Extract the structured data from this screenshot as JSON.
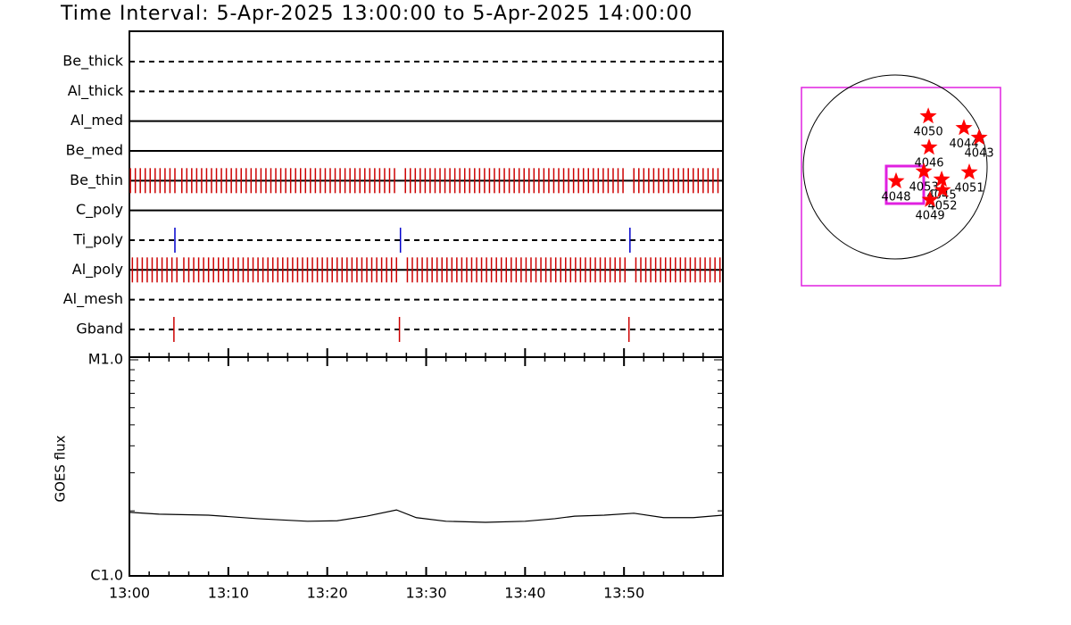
{
  "chart_data": [
    {
      "type": "timeline",
      "title": "Time Interval:  5-Apr-2025 13:00:00 to  5-Apr-2025 14:00:00",
      "xlim": [
        0,
        60
      ],
      "rows": [
        {
          "name": "Be_thick",
          "style": "dashed",
          "color": "#cc0000",
          "events": []
        },
        {
          "name": "Al_thick",
          "style": "dashed",
          "color": "#cc0000",
          "events": []
        },
        {
          "name": "Al_med",
          "style": "solid",
          "color": "#cc0000",
          "events": []
        },
        {
          "name": "Be_med",
          "style": "solid",
          "color": "#cc0000",
          "events": []
        },
        {
          "name": "Be_thin",
          "style": "solid",
          "color": "#cc0000",
          "events": [
            0.1,
            0.6,
            1.1,
            1.6,
            2.1,
            2.6,
            3.1,
            3.6,
            4.1,
            4.6,
            5.3,
            5.8,
            6.3,
            6.8,
            7.3,
            7.8,
            8.3,
            8.8,
            9.3,
            9.8,
            10.3,
            10.8,
            11.3,
            11.8,
            12.3,
            12.8,
            13.3,
            13.8,
            14.3,
            14.8,
            15.3,
            15.8,
            16.3,
            16.8,
            17.3,
            17.8,
            18.3,
            18.8,
            19.3,
            19.8,
            20.3,
            20.8,
            21.3,
            21.8,
            22.3,
            22.8,
            23.3,
            23.8,
            24.3,
            24.8,
            25.3,
            25.8,
            26.3,
            26.8,
            27.9,
            28.4,
            28.9,
            29.4,
            29.9,
            30.4,
            30.9,
            31.4,
            31.9,
            32.4,
            32.9,
            33.4,
            33.9,
            34.4,
            34.9,
            35.4,
            35.9,
            36.4,
            36.9,
            37.4,
            37.9,
            38.4,
            38.9,
            39.4,
            39.9,
            40.4,
            40.9,
            41.4,
            41.9,
            42.4,
            42.9,
            43.4,
            43.9,
            44.4,
            44.9,
            45.4,
            45.9,
            46.4,
            46.9,
            47.4,
            47.9,
            48.4,
            48.9,
            49.4,
            49.9,
            51.0,
            51.5,
            52.0,
            52.5,
            53.0,
            53.5,
            54.0,
            54.5,
            55.0,
            55.5,
            56.0,
            56.5,
            57.0,
            57.5,
            58.0,
            58.5,
            59.0,
            59.5
          ]
        },
        {
          "name": "C_poly",
          "style": "solid",
          "color": "#cc0000",
          "events": []
        },
        {
          "name": "Ti_poly",
          "style": "dashed",
          "color": "#0000cc",
          "events": [
            4.6,
            27.4,
            50.6
          ]
        },
        {
          "name": "Al_poly",
          "style": "solid",
          "color": "#cc0000",
          "events": [
            0.3,
            0.8,
            1.3,
            1.8,
            2.3,
            2.8,
            3.3,
            3.8,
            4.3,
            4.8,
            5.5,
            6.0,
            6.5,
            7.0,
            7.5,
            8.0,
            8.5,
            9.0,
            9.5,
            10.0,
            10.5,
            11.0,
            11.5,
            12.0,
            12.5,
            13.0,
            13.5,
            14.0,
            14.5,
            15.0,
            15.5,
            16.0,
            16.5,
            17.0,
            17.5,
            18.0,
            18.5,
            19.0,
            19.5,
            20.0,
            20.5,
            21.0,
            21.5,
            22.0,
            22.5,
            23.0,
            23.5,
            24.0,
            24.5,
            25.0,
            25.5,
            26.0,
            26.5,
            27.0,
            28.1,
            28.6,
            29.1,
            29.6,
            30.1,
            30.6,
            31.1,
            31.6,
            32.1,
            32.6,
            33.1,
            33.6,
            34.1,
            34.6,
            35.1,
            35.6,
            36.1,
            36.6,
            37.1,
            37.6,
            38.1,
            38.6,
            39.1,
            39.6,
            40.1,
            40.6,
            41.1,
            41.6,
            42.1,
            42.6,
            43.1,
            43.6,
            44.1,
            44.6,
            45.1,
            45.6,
            46.1,
            46.6,
            47.1,
            47.6,
            48.1,
            48.6,
            49.1,
            49.6,
            50.1,
            51.2,
            51.7,
            52.2,
            52.7,
            53.2,
            53.7,
            54.2,
            54.7,
            55.2,
            55.7,
            56.2,
            56.7,
            57.2,
            57.7,
            58.2,
            58.7,
            59.2,
            59.7
          ]
        },
        {
          "name": "Al_mesh",
          "style": "dashed",
          "color": "#cc0000",
          "events": []
        },
        {
          "name": "Gband",
          "style": "dashed",
          "color": "#cc0000",
          "events": [
            4.5,
            27.3,
            50.5
          ]
        }
      ]
    },
    {
      "type": "line",
      "ylabel": "GOES flux",
      "log_y": true,
      "color": "#000000",
      "xlim": [
        0,
        60
      ],
      "xticks": [
        {
          "value": 0,
          "label": "13:00"
        },
        {
          "value": 10,
          "label": "13:10"
        },
        {
          "value": 20,
          "label": "13:20"
        },
        {
          "value": 30,
          "label": "13:30"
        },
        {
          "value": 40,
          "label": "13:40"
        },
        {
          "value": 50,
          "label": "13:50"
        }
      ],
      "xminor": [
        2,
        4,
        6,
        8,
        12,
        14,
        16,
        18,
        22,
        24,
        26,
        28,
        32,
        34,
        36,
        38,
        42,
        44,
        46,
        48,
        52,
        54,
        56,
        58
      ],
      "ylim": [
        1e-06,
        1e-05
      ],
      "yticks": [
        {
          "value": 1e-06,
          "label": "C1.0"
        },
        {
          "value": 1e-05,
          "label": "M1.0"
        }
      ],
      "yminor": [
        2e-06,
        3e-06,
        4e-06,
        5e-06,
        6e-06,
        7e-06,
        8e-06,
        9e-06
      ],
      "x": [
        0,
        3,
        8,
        13,
        18,
        21,
        24,
        27,
        29,
        32,
        36,
        40,
        43,
        45,
        48,
        51,
        54,
        57,
        60
      ],
      "values": [
        1.97e-06,
        1.93e-06,
        1.91e-06,
        1.84e-06,
        1.79e-06,
        1.8e-06,
        1.89e-06,
        2.02e-06,
        1.86e-06,
        1.79e-06,
        1.77e-06,
        1.79e-06,
        1.84e-06,
        1.89e-06,
        1.91e-06,
        1.95e-06,
        1.86e-06,
        1.86e-06,
        1.91e-06
      ]
    },
    {
      "type": "scatter",
      "color": "#ff0000",
      "xlim": [
        -980,
        1100
      ],
      "ylim": [
        -1246,
        834
      ],
      "names": [
        "4050",
        "4044",
        "4043",
        "4046",
        "4053",
        "4045",
        "4051",
        "4048",
        "4052",
        "4049"
      ],
      "x": [
        345,
        718,
        877,
        354,
        299,
        485,
        774,
        9,
        494,
        364
      ],
      "values": [
        532,
        410,
        308,
        205,
        -47,
        -131,
        -56,
        -149,
        -243,
        -345
      ]
    }
  ]
}
